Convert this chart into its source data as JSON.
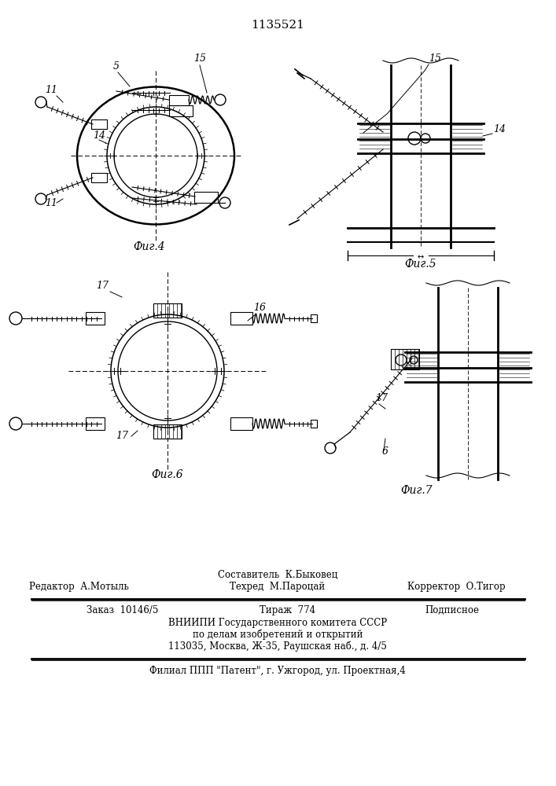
{
  "title_number": "1135521",
  "bg_color": "#ffffff",
  "footer_line1": "Составитель  К.Быковец",
  "footer_line2_left": "Редактор  А.Мотыль",
  "footer_line2_mid": "Техред  М.Пароцай",
  "footer_line2_right": "Корректор  О.Тигор",
  "footer_line3_a": "Заказ  10146/5",
  "footer_line3_b": "Тираж  774",
  "footer_line3_c": "Подписное",
  "footer_line4": "ВНИИПИ Государственного комитета СССР",
  "footer_line5": "по делам изобретений и открытий",
  "footer_line6": "113035, Москва, Ж-35, Раушская наб., д. 4/5",
  "footer_line7": "Филиал ППП \"Патент\", г. Ужгород, ул. Проектная,4",
  "fig4_caption": "Фиг.4",
  "fig5_caption": "Фиг.5",
  "fig6_caption": "Фиг.6",
  "fig7_caption": "Фиг.7"
}
